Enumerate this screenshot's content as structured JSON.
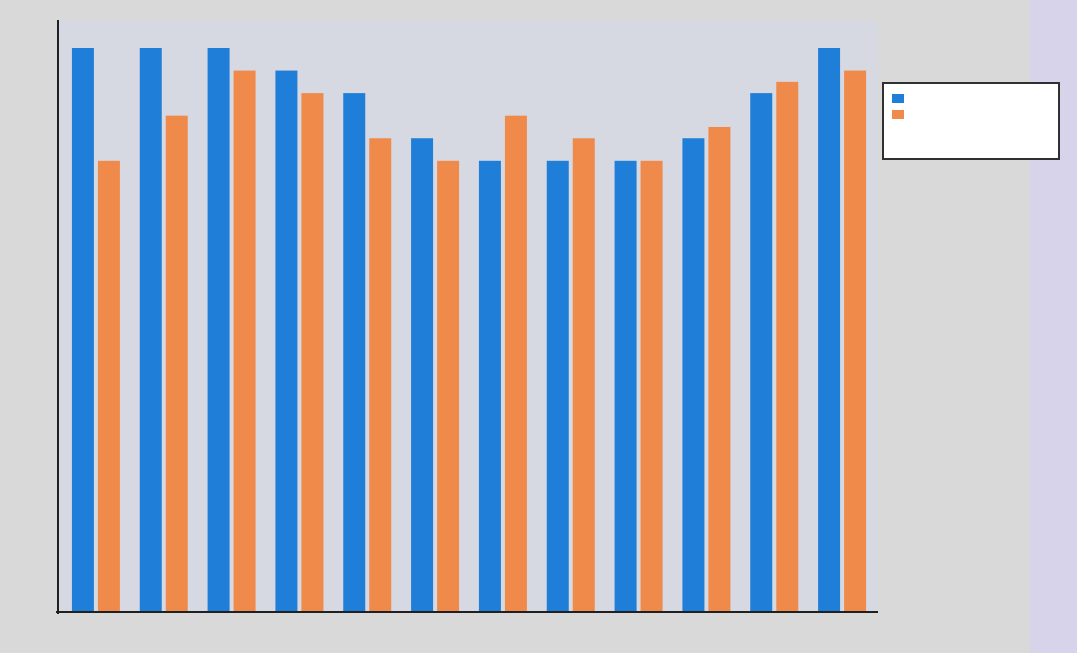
{
  "chart_data": {
    "type": "bar",
    "title": "",
    "xlabel": "",
    "ylabel": "",
    "ylim": [
      0,
      100
    ],
    "grid": false,
    "legend_position": "top-right",
    "categories": [
      "",
      "",
      "",
      "",
      "",
      "",
      "",
      "",
      "",
      "",
      "",
      ""
    ],
    "series": [
      {
        "name": "",
        "color": "#1f7ed8",
        "values": [
          100,
          100,
          100,
          96,
          92,
          84,
          80,
          80,
          80,
          84,
          92,
          100
        ]
      },
      {
        "name": "",
        "color": "#f08a4b",
        "values": [
          80,
          88,
          96,
          92,
          84,
          80,
          88,
          84,
          80,
          86,
          94,
          96
        ]
      }
    ]
  },
  "colors": {
    "page_background": "#d9d9d9",
    "panel_background": "#d6d3ea",
    "axis": "#202020",
    "legend_border": "#303030"
  }
}
